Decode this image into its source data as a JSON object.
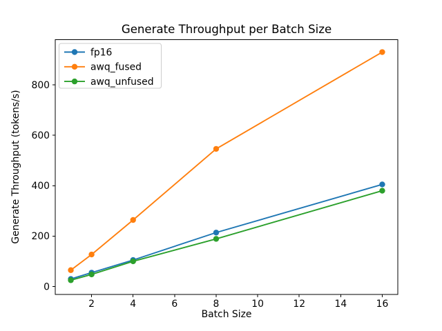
{
  "figure": {
    "title": "Generate Throughput per Batch Size",
    "xlabel": "Batch Size",
    "ylabel": "Generate Throughput (tokens/s)"
  },
  "chart_data": {
    "type": "line",
    "title": "Generate Throughput per Batch Size",
    "xlabel": "Batch Size",
    "ylabel": "Generate Throughput (tokens/s)",
    "x": [
      1,
      2,
      4,
      8,
      16
    ],
    "series": [
      {
        "name": "fp16",
        "color": "#1f77b4",
        "values": [
          30,
          55,
          105,
          214,
          405
        ]
      },
      {
        "name": "awq_fused",
        "color": "#ff7f0e",
        "values": [
          65,
          127,
          264,
          546,
          930
        ]
      },
      {
        "name": "awq_unfused",
        "color": "#2ca02c",
        "values": [
          25,
          48,
          100,
          189,
          380
        ]
      }
    ],
    "xticks": [
      2,
      4,
      6,
      8,
      10,
      12,
      14,
      16
    ],
    "yticks": [
      0,
      200,
      400,
      600,
      800
    ],
    "xlim": [
      0.25,
      16.75
    ],
    "ylim": [
      -32,
      979
    ],
    "grid": false,
    "legend_position": "upper left",
    "marker": "o",
    "background_color": "#ffffff",
    "text_color": "#000000",
    "spine_color": "#000000",
    "legend_border_color": "#cccccc"
  }
}
